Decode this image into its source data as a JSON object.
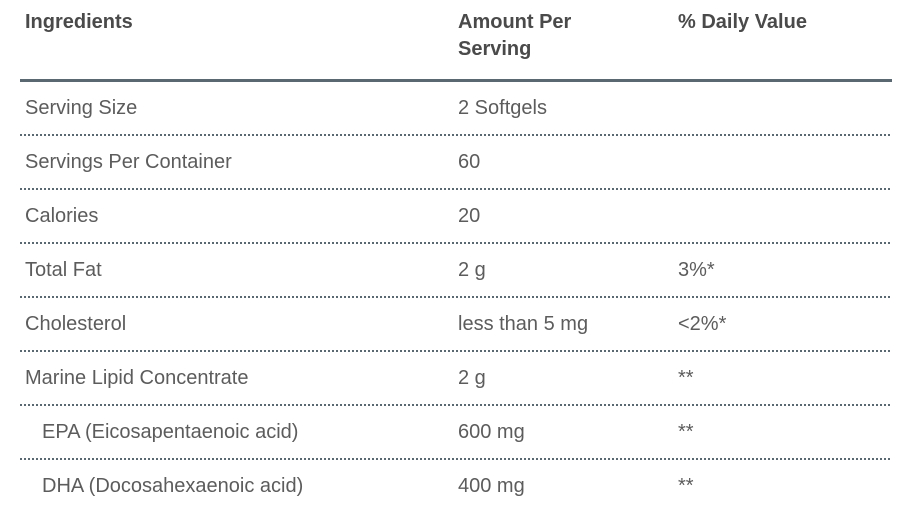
{
  "table": {
    "columns": [
      {
        "label": "Ingredients"
      },
      {
        "label": "Amount Per Serving"
      },
      {
        "label": "% Daily Value"
      }
    ],
    "rows": [
      {
        "ingredient": "Serving Size",
        "amount": "2 Softgels",
        "daily_value": ""
      },
      {
        "ingredient": "Servings Per Container",
        "amount": "60",
        "daily_value": ""
      },
      {
        "ingredient": "Calories",
        "amount": "20",
        "daily_value": ""
      },
      {
        "ingredient": "Total Fat",
        "amount": "2 g",
        "daily_value": "3%*"
      },
      {
        "ingredient": "Cholesterol",
        "amount": "less than 5 mg",
        "daily_value": "<2%*"
      },
      {
        "ingredient": "Marine Lipid Concentrate",
        "amount": "2 g",
        "daily_value": "**"
      },
      {
        "ingredient": "EPA (Eicosapentaenoic acid)",
        "amount": "600 mg",
        "daily_value": "**"
      },
      {
        "ingredient": "DHA (Docosahexaenoic acid)",
        "amount": "400 mg",
        "daily_value": "**"
      }
    ],
    "colors": {
      "header_text": "#4a4a4a",
      "body_text": "#5c5c5c",
      "rule": "#5a6872"
    }
  }
}
